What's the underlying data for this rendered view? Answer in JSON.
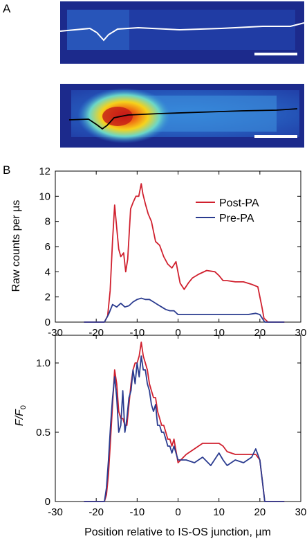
{
  "panels": {
    "a_label": "A",
    "b_label": "B"
  },
  "chart_data": [
    {
      "type": "line",
      "panel": "B-top",
      "ylabel": "Raw counts per µs",
      "xlim": [
        -30,
        30
      ],
      "ylim": [
        0,
        12
      ],
      "xticks": [
        -30,
        -20,
        -10,
        0,
        10,
        20,
        30
      ],
      "yticks": [
        0,
        2,
        4,
        6,
        8,
        10,
        12
      ],
      "legend": "top-right",
      "series": [
        {
          "name": "Post-PA",
          "color": "#d0202e",
          "x": [
            -23,
            -18,
            -17.2,
            -16.6,
            -16,
            -15.5,
            -15,
            -14.5,
            -14,
            -13.3,
            -12.8,
            -12.3,
            -11.6,
            -11,
            -10.3,
            -9.6,
            -9,
            -8.6,
            -8,
            -7.3,
            -6.5,
            -5.5,
            -4.5,
            -3.5,
            -2.5,
            -1.5,
            -0.5,
            0.5,
            1.5,
            2.5,
            3.5,
            5,
            7,
            9,
            10,
            11,
            12,
            14,
            16,
            18,
            19.5,
            20.5,
            21,
            22,
            26
          ],
          "y": [
            0,
            0,
            0.5,
            2.5,
            6.5,
            9.3,
            7.5,
            5.8,
            5.2,
            5.5,
            4.0,
            5.0,
            9.0,
            9.5,
            10.0,
            10.0,
            11.0,
            10.2,
            9.4,
            8.6,
            8.0,
            6.4,
            6.1,
            5.2,
            4.6,
            4.3,
            4.8,
            3.1,
            2.6,
            3.1,
            3.5,
            3.8,
            4.1,
            4.0,
            3.7,
            3.3,
            3.3,
            3.2,
            3.2,
            3.0,
            2.8,
            1.2,
            0.3,
            0,
            0
          ]
        },
        {
          "name": "Pre-PA",
          "color": "#2a3b8f",
          "x": [
            -23,
            -18,
            -17,
            -16,
            -15,
            -14,
            -13,
            -12,
            -11,
            -10,
            -9,
            -8,
            -7,
            -6,
            -5,
            -4,
            -3,
            -2,
            -1,
            0,
            2,
            5,
            8,
            11,
            14,
            17,
            19,
            20,
            20.6,
            21.2,
            26
          ],
          "y": [
            0,
            0,
            0.6,
            1.4,
            1.2,
            1.5,
            1.2,
            1.3,
            1.6,
            1.8,
            1.9,
            1.8,
            1.8,
            1.6,
            1.4,
            1.2,
            1.0,
            0.9,
            0.9,
            0.6,
            0.6,
            0.6,
            0.6,
            0.6,
            0.6,
            0.6,
            0.7,
            0.6,
            0.3,
            0,
            0
          ]
        }
      ]
    },
    {
      "type": "line",
      "panel": "B-bottom",
      "ylabel_main": "F",
      "ylabel_sub1": "/F",
      "ylabel_sub2": "0",
      "xlabel": "Position relative to IS-OS junction, µm",
      "xlim": [
        -30,
        30
      ],
      "ylim": [
        0,
        1.2
      ],
      "xticks": [
        -30,
        -20,
        -10,
        0,
        10,
        20,
        30
      ],
      "yticks": [
        0,
        0.5,
        1.0
      ],
      "ytick_labels": [
        "0",
        "0.5",
        "1.0"
      ],
      "series": [
        {
          "color": "#d0202e",
          "x": [
            -23,
            -18,
            -17.5,
            -17,
            -16.5,
            -16,
            -15.5,
            -15,
            -14.5,
            -14,
            -13.5,
            -13,
            -12.5,
            -12,
            -11.5,
            -11,
            -10.5,
            -10,
            -9.5,
            -9,
            -8.5,
            -8,
            -7.5,
            -7,
            -6.5,
            -6,
            -5.5,
            -5,
            -4.5,
            -4,
            -3.5,
            -3,
            -2.5,
            -2,
            -1.5,
            -1,
            0,
            2,
            4,
            6,
            8,
            10,
            11,
            12,
            14,
            16,
            18,
            19,
            20,
            20.6,
            21.2,
            26
          ],
          "y": [
            0,
            0,
            0.05,
            0.2,
            0.45,
            0.7,
            0.95,
            0.85,
            0.65,
            0.6,
            0.6,
            0.55,
            0.55,
            0.7,
            0.85,
            0.95,
            1.0,
            1.0,
            1.05,
            1.15,
            1.05,
            1.0,
            0.95,
            0.85,
            0.8,
            0.75,
            0.75,
            0.65,
            0.6,
            0.55,
            0.55,
            0.5,
            0.45,
            0.45,
            0.4,
            0.45,
            0.28,
            0.34,
            0.38,
            0.42,
            0.42,
            0.42,
            0.4,
            0.36,
            0.34,
            0.34,
            0.34,
            0.34,
            0.3,
            0.15,
            0,
            0
          ]
        },
        {
          "color": "#2a3b8f",
          "x": [
            -23,
            -18,
            -17.5,
            -17,
            -16.5,
            -16,
            -15.5,
            -15,
            -14.5,
            -14,
            -13.5,
            -13,
            -12.5,
            -12,
            -11.5,
            -11,
            -10.5,
            -10,
            -9.5,
            -9,
            -8.5,
            -8,
            -7.5,
            -7,
            -6.5,
            -6,
            -5.5,
            -5,
            -4.5,
            -4,
            -3.5,
            -3,
            -2.5,
            -2,
            -1.5,
            -1,
            0,
            2,
            4,
            6,
            8,
            10,
            11,
            12,
            14,
            16,
            18,
            19,
            20,
            20.6,
            21.2,
            26
          ],
          "y": [
            0,
            0,
            0.1,
            0.3,
            0.55,
            0.75,
            0.9,
            0.75,
            0.5,
            0.55,
            0.8,
            0.5,
            0.6,
            0.75,
            0.8,
            0.95,
            0.85,
            1.0,
            0.9,
            1.05,
            0.95,
            0.95,
            0.85,
            0.8,
            0.7,
            0.65,
            0.7,
            0.55,
            0.55,
            0.5,
            0.5,
            0.45,
            0.4,
            0.4,
            0.35,
            0.4,
            0.3,
            0.3,
            0.28,
            0.32,
            0.26,
            0.35,
            0.3,
            0.26,
            0.3,
            0.28,
            0.32,
            0.38,
            0.3,
            0.15,
            0,
            0
          ]
        }
      ]
    }
  ]
}
